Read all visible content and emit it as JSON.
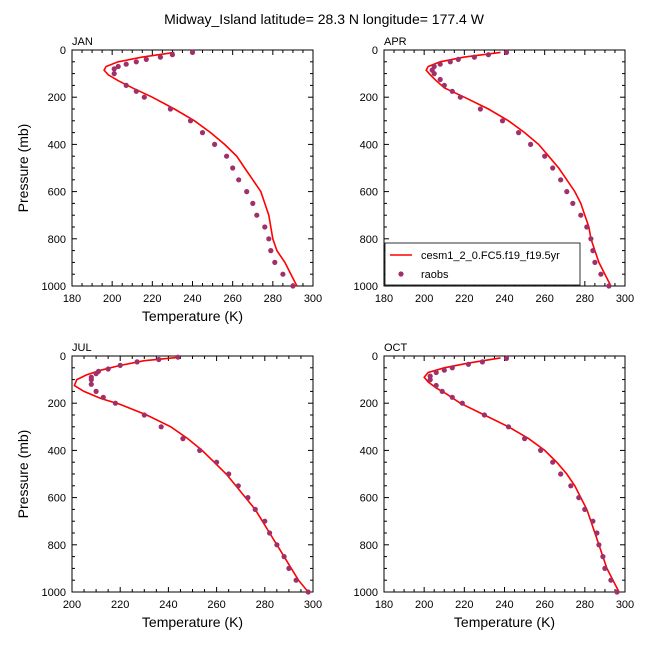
{
  "title": "Midway_Island  latitude= 28.3 N longitude= 177.4 W",
  "legend": {
    "model_label": "cesm1_2_0.FC5.f19_f19.5yr",
    "obs_label": "raobs"
  },
  "colors": {
    "model": "#ff0000",
    "obs": "#a0306a"
  },
  "chart_data": [
    {
      "type": "line",
      "panel": "JAN",
      "xlabel": "Temperature (K)",
      "ylabel": "Pressure (mb)",
      "xlim": [
        180,
        300
      ],
      "ylim": [
        1000,
        0
      ],
      "xticks": [
        180,
        200,
        220,
        240,
        260,
        280,
        300
      ],
      "yticks": [
        0,
        200,
        400,
        600,
        800,
        1000
      ],
      "series": [
        {
          "name": "cesm1_2_0.FC5.f19_f19.5yr",
          "style": "line",
          "points": [
            [
              231,
              10
            ],
            [
              215,
              30
            ],
            [
              203,
              50
            ],
            [
              197,
              70
            ],
            [
              196,
              85
            ],
            [
              198,
              105
            ],
            [
              203,
              130
            ],
            [
              210,
              160
            ],
            [
              220,
              200
            ],
            [
              231,
              250
            ],
            [
              241,
              300
            ],
            [
              249,
              350
            ],
            [
              256,
              400
            ],
            [
              262,
              450
            ],
            [
              266,
              500
            ],
            [
              270,
              550
            ],
            [
              274,
              600
            ],
            [
              276,
              650
            ],
            [
              278,
              700
            ],
            [
              279,
              750
            ],
            [
              280,
              800
            ],
            [
              282,
              850
            ],
            [
              286,
              900
            ],
            [
              289,
              950
            ],
            [
              292,
              1000
            ]
          ]
        },
        {
          "name": "raobs",
          "style": "markers",
          "points": [
            [
              240,
              10
            ],
            [
              230,
              20
            ],
            [
              224,
              30
            ],
            [
              217,
              40
            ],
            [
              212,
              50
            ],
            [
              207,
              60
            ],
            [
              203,
              70
            ],
            [
              201,
              80
            ],
            [
              201,
              100
            ],
            [
              207,
              150
            ],
            [
              212,
              175
            ],
            [
              216,
              200
            ],
            [
              229,
              250
            ],
            [
              239,
              300
            ],
            [
              245,
              350
            ],
            [
              251,
              400
            ],
            [
              257,
              450
            ],
            [
              260,
              500
            ],
            [
              263,
              550
            ],
            [
              267,
              600
            ],
            [
              270,
              650
            ],
            [
              272,
              700
            ],
            [
              276,
              750
            ],
            [
              278,
              800
            ],
            [
              279,
              850
            ],
            [
              281,
              900
            ],
            [
              285,
              950
            ],
            [
              290,
              1000
            ]
          ]
        }
      ]
    },
    {
      "type": "line",
      "panel": "APR",
      "xlabel": "",
      "ylabel": "",
      "xlim": [
        180,
        300
      ],
      "ylim": [
        1000,
        0
      ],
      "xticks": [
        180,
        200,
        220,
        240,
        260,
        280,
        300
      ],
      "yticks": [
        0,
        200,
        400,
        600,
        800,
        1000
      ],
      "series": [
        {
          "name": "cesm1_2_0.FC5.f19_f19.5yr",
          "style": "line",
          "points": [
            [
              238,
              10
            ],
            [
              220,
              30
            ],
            [
              208,
              50
            ],
            [
              202,
              70
            ],
            [
              201,
              85
            ],
            [
              203,
              105
            ],
            [
              206,
              130
            ],
            [
              210,
              160
            ],
            [
              220,
              200
            ],
            [
              232,
              250
            ],
            [
              242,
              300
            ],
            [
              250,
              350
            ],
            [
              257,
              400
            ],
            [
              262,
              450
            ],
            [
              267,
              500
            ],
            [
              271,
              550
            ],
            [
              275,
              600
            ],
            [
              278,
              650
            ],
            [
              280,
              700
            ],
            [
              282,
              750
            ],
            [
              283,
              800
            ],
            [
              285,
              850
            ],
            [
              287,
              900
            ],
            [
              290,
              950
            ],
            [
              293,
              1000
            ]
          ]
        },
        {
          "name": "raobs",
          "style": "markers",
          "points": [
            [
              241,
              10
            ],
            [
              232,
              20
            ],
            [
              225,
              30
            ],
            [
              217,
              40
            ],
            [
              213,
              50
            ],
            [
              208,
              60
            ],
            [
              205,
              70
            ],
            [
              204,
              85
            ],
            [
              205,
              100
            ],
            [
              208,
              125
            ],
            [
              210,
              150
            ],
            [
              214,
              175
            ],
            [
              218,
              200
            ],
            [
              228,
              250
            ],
            [
              239,
              300
            ],
            [
              247,
              350
            ],
            [
              253,
              400
            ],
            [
              260,
              450
            ],
            [
              264,
              500
            ],
            [
              268,
              550
            ],
            [
              271,
              600
            ],
            [
              274,
              650
            ],
            [
              278,
              700
            ],
            [
              281,
              750
            ],
            [
              283,
              800
            ],
            [
              284,
              850
            ],
            [
              285,
              900
            ],
            [
              288,
              950
            ],
            [
              292,
              1000
            ]
          ]
        }
      ]
    },
    {
      "type": "line",
      "panel": "JUL",
      "xlabel": "Temperature (K)",
      "ylabel": "Pressure (mb)",
      "xlim": [
        200,
        300
      ],
      "ylim": [
        1000,
        0
      ],
      "xticks": [
        200,
        220,
        240,
        260,
        280,
        300
      ],
      "yticks": [
        0,
        200,
        400,
        600,
        800,
        1000
      ],
      "series": [
        {
          "name": "cesm1_2_0.FC5.f19_f19.5yr",
          "style": "line",
          "points": [
            [
              245,
              5
            ],
            [
              230,
              20
            ],
            [
              220,
              40
            ],
            [
              212,
              60
            ],
            [
              206,
              80
            ],
            [
              202,
              100
            ],
            [
              201,
              125
            ],
            [
              205,
              150
            ],
            [
              212,
              180
            ],
            [
              220,
              205
            ],
            [
              231,
              250
            ],
            [
              241,
              300
            ],
            [
              248,
              350
            ],
            [
              254,
              400
            ],
            [
              259,
              450
            ],
            [
              264,
              500
            ],
            [
              268,
              550
            ],
            [
              272,
              600
            ],
            [
              276,
              650
            ],
            [
              279,
              700
            ],
            [
              282,
              750
            ],
            [
              285,
              800
            ],
            [
              288,
              850
            ],
            [
              291,
              900
            ],
            [
              294,
              950
            ],
            [
              298,
              1000
            ]
          ]
        },
        {
          "name": "raobs",
          "style": "markers",
          "points": [
            [
              244,
              5
            ],
            [
              236,
              15
            ],
            [
              227,
              25
            ],
            [
              220,
              40
            ],
            [
              215,
              55
            ],
            [
              211,
              65
            ],
            [
              210,
              75
            ],
            [
              208,
              90
            ],
            [
              208,
              100
            ],
            [
              208,
              120
            ],
            [
              210,
              150
            ],
            [
              213,
              175
            ],
            [
              218,
              200
            ],
            [
              230,
              250
            ],
            [
              237,
              300
            ],
            [
              246,
              350
            ],
            [
              253,
              400
            ],
            [
              260,
              450
            ],
            [
              265,
              500
            ],
            [
              269,
              550
            ],
            [
              273,
              600
            ],
            [
              276,
              650
            ],
            [
              280,
              700
            ],
            [
              282,
              750
            ],
            [
              285,
              800
            ],
            [
              288,
              850
            ],
            [
              290,
              900
            ],
            [
              293,
              950
            ],
            [
              298,
              1000
            ]
          ]
        }
      ]
    },
    {
      "type": "line",
      "panel": "OCT",
      "xlabel": "Temperature (K)",
      "ylabel": "",
      "xlim": [
        180,
        300
      ],
      "ylim": [
        1000,
        0
      ],
      "xticks": [
        180,
        200,
        220,
        240,
        260,
        280,
        300
      ],
      "yticks": [
        0,
        200,
        400,
        600,
        800,
        1000
      ],
      "series": [
        {
          "name": "cesm1_2_0.FC5.f19_f19.5yr",
          "style": "line",
          "points": [
            [
              238,
              8
            ],
            [
              222,
              30
            ],
            [
              210,
              50
            ],
            [
              202,
              70
            ],
            [
              200,
              90
            ],
            [
              202,
              110
            ],
            [
              206,
              135
            ],
            [
              211,
              160
            ],
            [
              218,
              200
            ],
            [
              230,
              250
            ],
            [
              242,
              300
            ],
            [
              252,
              350
            ],
            [
              260,
              400
            ],
            [
              266,
              450
            ],
            [
              271,
              500
            ],
            [
              275,
              550
            ],
            [
              278,
              600
            ],
            [
              281,
              650
            ],
            [
              283,
              700
            ],
            [
              285,
              750
            ],
            [
              287,
              800
            ],
            [
              289,
              850
            ],
            [
              291,
              900
            ],
            [
              294,
              950
            ],
            [
              297,
              1000
            ]
          ]
        },
        {
          "name": "raobs",
          "style": "markers",
          "points": [
            [
              241,
              10
            ],
            [
              229,
              25
            ],
            [
              222,
              35
            ],
            [
              214,
              50
            ],
            [
              210,
              60
            ],
            [
              206,
              70
            ],
            [
              203,
              85
            ],
            [
              203,
              100
            ],
            [
              206,
              125
            ],
            [
              209,
              150
            ],
            [
              214,
              175
            ],
            [
              219,
              200
            ],
            [
              230,
              250
            ],
            [
              242,
              300
            ],
            [
              250,
              350
            ],
            [
              258,
              400
            ],
            [
              264,
              450
            ],
            [
              268,
              500
            ],
            [
              273,
              550
            ],
            [
              277,
              600
            ],
            [
              280,
              650
            ],
            [
              284,
              700
            ],
            [
              286,
              750
            ],
            [
              287,
              800
            ],
            [
              289,
              850
            ],
            [
              290,
              900
            ],
            [
              293,
              950
            ],
            [
              296,
              1000
            ]
          ]
        }
      ]
    }
  ]
}
